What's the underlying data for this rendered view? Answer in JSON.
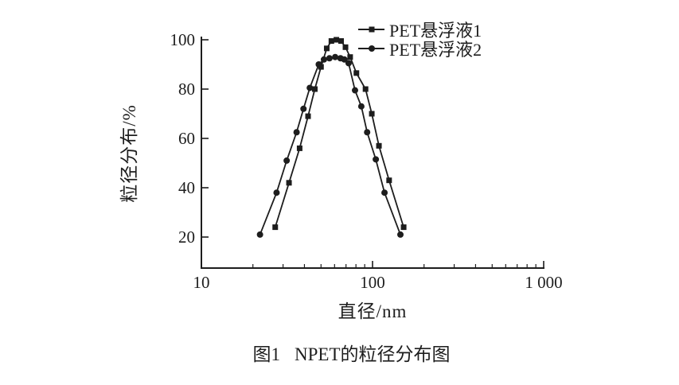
{
  "figure_caption": {
    "number": "图1",
    "title": "NPET的粒径分布图"
  },
  "chart_data": {
    "type": "line",
    "title": "",
    "xlabel": "直径/nm",
    "ylabel": "粒径分布/%",
    "x_scale": "log",
    "xlim": [
      10,
      1000
    ],
    "ylim": [
      7,
      101
    ],
    "x_major_ticks": [
      10,
      100,
      1000
    ],
    "x_tick_labels": [
      "10",
      "100",
      "1 000"
    ],
    "x_minor_ticks": [
      20,
      30,
      40,
      50,
      60,
      70,
      80,
      90,
      200,
      300,
      400,
      500,
      600,
      700,
      800,
      900
    ],
    "y_major_ticks": [
      20,
      40,
      60,
      80,
      100
    ],
    "y_tick_labels": [
      "20",
      "40",
      "60",
      "80",
      "100"
    ],
    "grid": false,
    "legend_position": "top-right-inside",
    "stroke_color": "#1d1d1d",
    "background_color": "#ffffff",
    "series": [
      {
        "name": "PET悬浮液1",
        "marker": "square",
        "points": [
          [
            27,
            24
          ],
          [
            32.5,
            42
          ],
          [
            37.5,
            56
          ],
          [
            42,
            69
          ],
          [
            46,
            80
          ],
          [
            50,
            89
          ],
          [
            54,
            96.5
          ],
          [
            57.5,
            99.5
          ],
          [
            61.5,
            100
          ],
          [
            65.5,
            99.5
          ],
          [
            69.5,
            97
          ],
          [
            74,
            93
          ],
          [
            80.5,
            86.5
          ],
          [
            91,
            80
          ],
          [
            99,
            70
          ],
          [
            109,
            57
          ],
          [
            125,
            43
          ],
          [
            152,
            24
          ]
        ]
      },
      {
        "name": "PET悬浮液2",
        "marker": "circle",
        "points": [
          [
            22,
            21
          ],
          [
            27.5,
            38
          ],
          [
            31.5,
            51
          ],
          [
            36,
            62.5
          ],
          [
            39.5,
            72
          ],
          [
            43,
            80.5
          ],
          [
            48.5,
            90
          ],
          [
            52,
            92
          ],
          [
            56,
            92.5
          ],
          [
            60.5,
            93
          ],
          [
            65,
            92.5
          ],
          [
            68.5,
            92
          ],
          [
            72.5,
            90.5
          ],
          [
            79,
            79.5
          ],
          [
            86,
            73
          ],
          [
            93,
            62.5
          ],
          [
            104.5,
            51.5
          ],
          [
            117.5,
            38
          ],
          [
            145.5,
            21
          ]
        ]
      }
    ]
  }
}
